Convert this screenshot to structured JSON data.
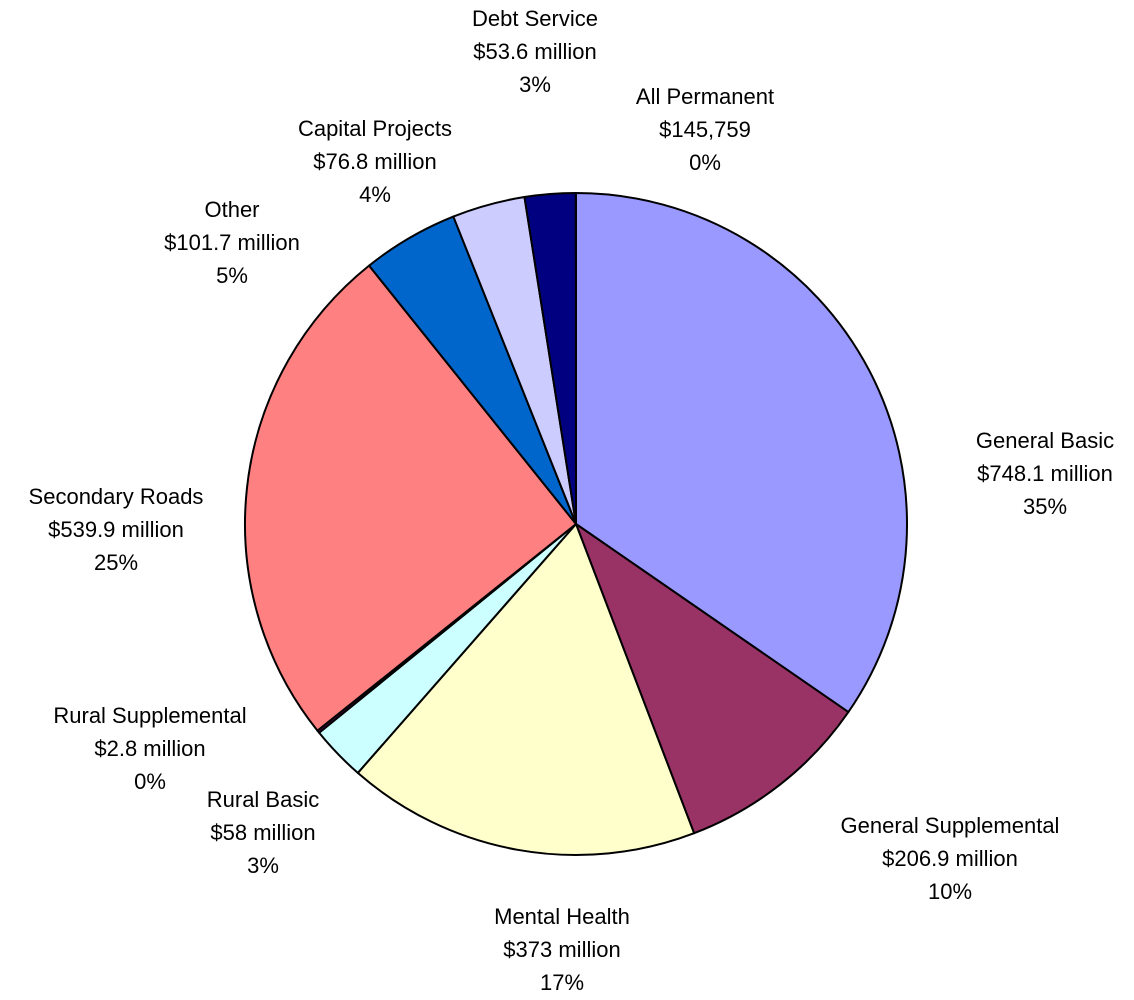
{
  "chart_data": {
    "type": "pie",
    "categories": [
      "General Basic",
      "General Supplemental",
      "Mental Health",
      "Rural Basic",
      "Rural Supplemental",
      "Secondary Roads",
      "Other",
      "Capital Projects",
      "Debt Service",
      "All Permanent"
    ],
    "values": [
      748100000,
      206900000,
      373000000,
      58000000,
      2800000,
      539900000,
      101700000,
      76800000,
      53600000,
      145759
    ],
    "value_labels": [
      "$748.1 million",
      "$206.9 million",
      "$373 million",
      "$58 million",
      "$2.8 million",
      "$539.9 million",
      "$101.7 million",
      "$76.8 million",
      "$53.6 million",
      "$145,759"
    ],
    "percent_labels": [
      "35%",
      "10%",
      "17%",
      "3%",
      "0%",
      "25%",
      "5%",
      "4%",
      "3%",
      "0%"
    ],
    "colors": [
      "#9999ff",
      "#993366",
      "#ffffcc",
      "#ccffff",
      "#660066",
      "#ff8080",
      "#0066cc",
      "#ccccff",
      "#000080",
      "#ffff00"
    ]
  }
}
